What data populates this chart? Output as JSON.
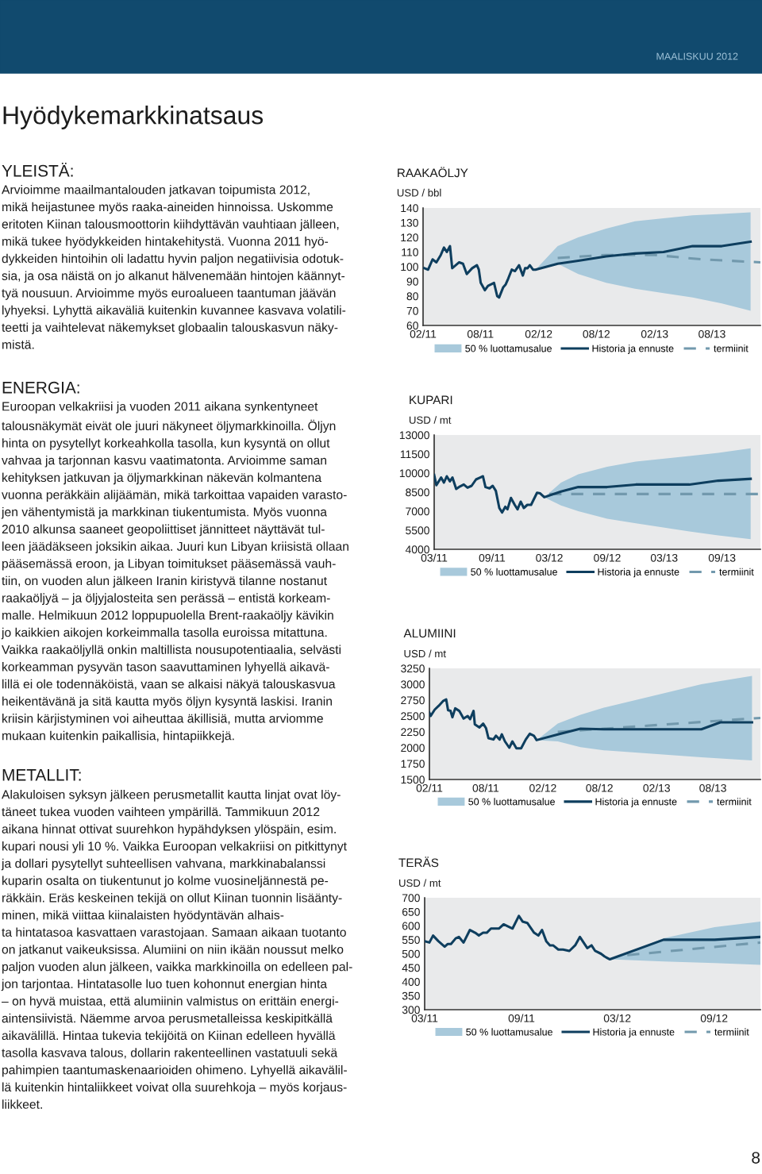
{
  "chart_data": [
    {
      "type": "other",
      "title": "Hyödykemarkkinatsaus",
      "annotations": [
        "MAALISKUU 2012",
        "YLEISTÄ:",
        "Arvioimme maailmantalouden jatkavan toipumista 2012,\nmikä heijastunee myös raaka-aineiden hinnoissa. Uskomme\neritoten Kiinan talousmoottorin kiihdyttävän vauhtiaan jälleen,\nmikä tukee hyödykkeiden hintakehitystä. Vuonna 2011 hyö-\ndykkeiden hintoihin oli ladattu hyvin paljon negatiivisia odotuk-\nsia, ja osa näistä on jo alkanut hälvenemään hintojen käännyt-\ntyä nousuun. Arvioimme myös euroalueen taantuman jäävän\nlyhyeksi. Lyhyttä aikaväliä kuitenkin kuvannee kasvava volatili-\nteetti ja vaihtelevat näkemykset globaalin talouskasvun näky-\nmistä.",
        "ENERGIA:",
        "Euroopan velkakriisi ja vuoden 2011 aikana synkentyneet\ntalousnäkymät eivät ole juuri näkyneet öljymarkkinoilla. Öljyn\nhinta on pysytellyt korkeahkolla tasolla, kun kysyntä on ollut\nvahvaa ja tarjonnan kasvu vaatimatonta. Arvioimme saman\nkehityksen jatkuvan ja öljymarkkinan näkevän kolmantena\nvuonna peräkkäin alijäämän, mikä tarkoittaa vapaiden varasto-\njen vähentymistä ja markkinan tiukentumista. Myös vuonna\n2010 alkunsa saaneet geopoliittiset jännitteet näyttävät tul-\nleen jäädäkseen joksikin aikaa. Juuri kun Libyan kriisistä ollaan\npääsemässä eroon, ja Libyan toimitukset pääsemässä vauh-\ntiin, on vuoden alun jälkeen Iranin kiristyvä tilanne nostanut\nraakaöljyä – ja öljyjalosteita sen perässä – entistä korkeam-\nmalle. Helmikuun 2012 loppupuolella Brent-raakaöljy kävikin\njo kaikkien aikojen korkeimmalla tasolla euroissa mitattuna.\nVaikka raakaöljyllä onkin maltillista nousupotentiaalia, selvästi\nkorkeamman pysyvän tason saavuttaminen lyhyellä aikavä-\nlillä ei ole todennäköistä, vaan se alkaisi näkyä talouskasvua\nheikentävänä ja sitä kautta myös öljyn kysyntä laskisi. Iranin\nkriisin kärjistyminen voi aiheuttaa äkillisiä, mutta arviomme\nmukaan kuitenkin paikallisia, hintapiikkejä.",
        "METALLIT:",
        "Alakuloisen syksyn jälkeen perusmetallit kautta linjat ovat löy-\ntäneet tukea vuoden vaihteen ympärillä. Tammikuun 2012\naikana hinnat ottivat suurehkon hypähdyksen ylöspäin, esim.\nkupari nousi yli 10 %. Vaikka Euroopan velkakriisi on pitkittynyt\nja dollari pysytellyt suhteellisen vahvana, markkinabalanssi\nkuparin osalta on tiukentunut jo kolme vuosineljännestä pe-\nräkkäin. Eräs keskeinen tekijä on ollut Kiinan tuonnin lisäänty-\nminen, mikä viittaa kiinalaisten hyödyntävän alhais-\nta hintatasoa kasvattaen varastojaan. Samaan aikaan tuotanto\non jatkanut vaikeuksissa. Alumiini on niin ikään noussut melko\npaljon vuoden alun jälkeen, vaikka markkinoilla on edelleen pal-\njon tarjontaa. Hintatasolle luo tuen kohonnut energian hinta\n– on hyvä muistaa, että alumiinin valmistus on erittäin energi-\naintensiivistä. Näemme arvoa perusmetalleissa keskipitkällä\naikavälillä. Hintaa tukevia tekijöitä on Kiinan edelleen hyvällä\ntasolla kasvava talous, dollarin rakenteellinen vastatuuli sekä\npahimpien taantumaskenaarioiden ohimeno. Lyhyellä aikavälil-\nlä kuitenkin hintaliikkeet voivat olla suurehkoja – myös korjaus-\nliikkeet.",
        "8"
      ]
    },
    {
      "type": "line",
      "title": "RAAKAÖLJY",
      "ylabel": "USD / bbl",
      "legend": "bottom",
      "grid": false,
      "xlim": [
        "2011-02-01",
        "2014-01-01"
      ],
      "xticks": [
        {
          "value": "2011-02-01",
          "label": "02/11"
        },
        {
          "value": "2011-08-01",
          "label": "08/11"
        },
        {
          "value": "2012-02-01",
          "label": "02/12"
        },
        {
          "value": "2012-08-01",
          "label": "08/12"
        },
        {
          "value": "2013-02-01",
          "label": "02/13"
        },
        {
          "value": "2013-08-01",
          "label": "08/13"
        }
      ],
      "ylim": [
        60,
        140
      ],
      "yticks": [
        60,
        70,
        80,
        90,
        100,
        110,
        120,
        130,
        140
      ],
      "series": [
        {
          "name": "50 % luottamusalue",
          "type": "area",
          "color": "#a8c9db"
        },
        {
          "name": "Historia ja ennuste",
          "color": "#0e3e5e",
          "line_style": "solid",
          "x": [
            "2011-02-05",
            "2011-02-17",
            "2011-03-03",
            "2011-03-15",
            "2011-03-29",
            "2011-04-08",
            "2011-04-17",
            "2011-04-27",
            "2011-05-04",
            "2011-05-26",
            "2011-06-07",
            "2011-06-19",
            "2011-07-06",
            "2011-07-21",
            "2011-07-27",
            "2011-08-02",
            "2011-08-15",
            "2011-08-25",
            "2011-09-13",
            "2011-09-23",
            "2011-09-29",
            "2011-10-12",
            "2011-10-20",
            "2011-10-28",
            "2011-11-08",
            "2011-11-18",
            "2011-12-01",
            "2011-12-13",
            "2011-12-20",
            "2011-12-28",
            "2012-01-04",
            "2012-01-14",
            "2012-01-22",
            "2012-04-01",
            "2012-06-05",
            "2012-09-01",
            "2012-12-01",
            "2013-03-01",
            "2013-06-01",
            "2013-09-01",
            "2013-12-01"
          ],
          "values": [
            99,
            98,
            105,
            103,
            108,
            113,
            110,
            114,
            99,
            103,
            102,
            95,
            99,
            101,
            98,
            89,
            84,
            87,
            89,
            80,
            79,
            86,
            88,
            92,
            98,
            97,
            101,
            94,
            99,
            99,
            101,
            98,
            98,
            102,
            104,
            107,
            109,
            110,
            114,
            114,
            117
          ],
          "lower": [
            null,
            null,
            null,
            null,
            null,
            null,
            null,
            null,
            null,
            null,
            null,
            null,
            null,
            null,
            null,
            null,
            null,
            null,
            null,
            null,
            null,
            null,
            null,
            null,
            null,
            null,
            null,
            null,
            null,
            null,
            null,
            null,
            98,
            102,
            95,
            89,
            85,
            82,
            79,
            75,
            70
          ],
          "upper": [
            null,
            null,
            null,
            null,
            null,
            null,
            null,
            null,
            null,
            null,
            null,
            null,
            null,
            null,
            null,
            null,
            null,
            null,
            null,
            null,
            null,
            null,
            null,
            null,
            null,
            null,
            null,
            null,
            null,
            null,
            null,
            null,
            98,
            114,
            120,
            126,
            131,
            133,
            135,
            136,
            137
          ]
        },
        {
          "name": "termiinit",
          "color": "#7299ad",
          "line_style": "dashed",
          "x": [
            "2012-04-01",
            "2012-09-01",
            "2013-02-01",
            "2013-07-01",
            "2014-01-01"
          ],
          "values": [
            106,
            108,
            108,
            105,
            103
          ]
        }
      ]
    },
    {
      "type": "line",
      "title": "KUPARI",
      "ylabel": "USD / mt",
      "legend": "bottom",
      "grid": false,
      "xlim": [
        "2011-03-01",
        "2014-01-01"
      ],
      "xticks": [
        {
          "value": "2011-03-01",
          "label": "03/11"
        },
        {
          "value": "2011-09-01",
          "label": "09/11"
        },
        {
          "value": "2012-03-01",
          "label": "03/12"
        },
        {
          "value": "2012-09-01",
          "label": "09/12"
        },
        {
          "value": "2013-03-01",
          "label": "03/13"
        },
        {
          "value": "2013-09-01",
          "label": "09/13"
        }
      ],
      "ylim": [
        4000,
        13000
      ],
      "yticks": [
        4000,
        5500,
        7000,
        8500,
        10000,
        11500,
        13000
      ],
      "series": [
        {
          "name": "50 % luottamusalue",
          "type": "area",
          "color": "#a8c9db"
        },
        {
          "name": "Historia ja ennuste",
          "color": "#0e3e5e",
          "line_style": "solid",
          "x": [
            "2011-03-01",
            "2011-03-08",
            "2011-03-23",
            "2011-04-01",
            "2011-04-10",
            "2011-04-20",
            "2011-04-28",
            "2011-05-10",
            "2011-05-22",
            "2011-06-03",
            "2011-06-15",
            "2011-06-28",
            "2011-07-12",
            "2011-07-25",
            "2011-08-03",
            "2011-08-11",
            "2011-08-24",
            "2011-09-03",
            "2011-09-13",
            "2011-09-24",
            "2011-10-03",
            "2011-10-13",
            "2011-10-20",
            "2011-10-31",
            "2011-11-12",
            "2011-11-21",
            "2011-12-01",
            "2011-12-11",
            "2011-12-22",
            "2012-01-03",
            "2012-01-22",
            "2012-02-01",
            "2012-02-14",
            "2012-04-07",
            "2012-06-01",
            "2012-09-01",
            "2012-12-01",
            "2013-05-20",
            "2013-08-20",
            "2013-12-01"
          ],
          "values": [
            9850,
            9050,
            9650,
            9250,
            9750,
            9350,
            9650,
            8750,
            8950,
            9100,
            8850,
            9000,
            9500,
            9650,
            9750,
            8900,
            8800,
            9000,
            8600,
            7250,
            6900,
            7350,
            7150,
            8050,
            7500,
            7150,
            7750,
            7250,
            7500,
            7500,
            8450,
            8400,
            8100,
            8550,
            8900,
            8900,
            9100,
            9100,
            9400,
            9550
          ],
          "lower": [
            null,
            null,
            null,
            null,
            null,
            null,
            null,
            null,
            null,
            null,
            null,
            null,
            null,
            null,
            null,
            null,
            null,
            null,
            null,
            null,
            null,
            null,
            null,
            null,
            null,
            null,
            null,
            null,
            null,
            null,
            null,
            null,
            8100,
            7450,
            7000,
            6400,
            6050,
            5400,
            5100,
            4800
          ],
          "upper": [
            null,
            null,
            null,
            null,
            null,
            null,
            null,
            null,
            null,
            null,
            null,
            null,
            null,
            null,
            null,
            null,
            null,
            null,
            null,
            null,
            null,
            null,
            null,
            null,
            null,
            null,
            null,
            null,
            null,
            null,
            null,
            null,
            8100,
            9250,
            9900,
            10500,
            10900,
            11350,
            11600,
            11950
          ]
        },
        {
          "name": "termiinit",
          "color": "#7299ad",
          "line_style": "dashed",
          "x": [
            "2012-03-01",
            "2014-01-01"
          ],
          "values": [
            8350,
            8350
          ]
        }
      ]
    },
    {
      "type": "line",
      "title": "ALUMIINI",
      "ylabel": "USD / mt",
      "legend": "bottom",
      "grid": false,
      "xlim": [
        "2011-02-01",
        "2014-01-01"
      ],
      "xticks": [
        {
          "value": "2011-02-01",
          "label": "02/11"
        },
        {
          "value": "2011-08-01",
          "label": "08/11"
        },
        {
          "value": "2012-02-01",
          "label": "02/12"
        },
        {
          "value": "2012-08-01",
          "label": "08/12"
        },
        {
          "value": "2013-02-01",
          "label": "02/13"
        },
        {
          "value": "2013-08-01",
          "label": "08/13"
        }
      ],
      "ylim": [
        1500,
        3250
      ],
      "yticks": [
        1500,
        1750,
        2000,
        2250,
        2500,
        2750,
        3000,
        3250
      ],
      "series": [
        {
          "name": "50 % luottamusalue",
          "type": "area",
          "color": "#a8c9db"
        },
        {
          "name": "Historia ja ennuste",
          "color": "#0e3e5e",
          "line_style": "solid",
          "x": [
            "2011-02-01",
            "2011-02-05",
            "2011-02-18",
            "2011-03-03",
            "2011-03-18",
            "2011-03-27",
            "2011-04-02",
            "2011-04-10",
            "2011-04-16",
            "2011-04-25",
            "2011-05-08",
            "2011-05-22",
            "2011-06-04",
            "2011-06-12",
            "2011-06-23",
            "2011-06-27",
            "2011-07-12",
            "2011-07-24",
            "2011-08-02",
            "2011-08-10",
            "2011-08-26",
            "2011-09-03",
            "2011-09-15",
            "2011-09-22",
            "2011-10-02",
            "2011-10-16",
            "2011-10-26",
            "2011-11-08",
            "2011-11-23",
            "2011-12-08",
            "2011-12-21",
            "2012-01-03",
            "2012-01-12",
            "2012-03-20",
            "2012-06-01",
            "2012-08-15",
            "2013-06-25",
            "2013-08-25",
            "2013-12-05"
          ],
          "values": [
            2550,
            2500,
            2600,
            2660,
            2740,
            2760,
            2590,
            2580,
            2480,
            2620,
            2580,
            2460,
            2500,
            2450,
            2580,
            2370,
            2320,
            2380,
            2310,
            2150,
            2130,
            2190,
            2130,
            2210,
            2100,
            2000,
            2100,
            1990,
            1990,
            2130,
            2220,
            2190,
            2120,
            2210,
            2300,
            2290,
            2290,
            2400,
            2400
          ],
          "lower": [
            null,
            null,
            null,
            null,
            null,
            null,
            null,
            null,
            null,
            null,
            null,
            null,
            null,
            null,
            null,
            null,
            null,
            null,
            null,
            null,
            null,
            null,
            null,
            null,
            null,
            null,
            null,
            null,
            null,
            null,
            null,
            null,
            2120,
            2100,
            2010,
            1960,
            1850,
            1830,
            1800
          ],
          "upper": [
            null,
            null,
            null,
            null,
            null,
            null,
            null,
            null,
            null,
            null,
            null,
            null,
            null,
            null,
            null,
            null,
            null,
            null,
            null,
            null,
            null,
            null,
            null,
            null,
            null,
            null,
            null,
            null,
            null,
            null,
            null,
            null,
            2120,
            2380,
            2520,
            2630,
            3000,
            3050,
            3130
          ]
        },
        {
          "name": "termiinit",
          "color": "#7299ad",
          "line_style": "dashed",
          "x": [
            "2012-03-20",
            "2014-01-01"
          ],
          "values": [
            2250,
            2470
          ]
        }
      ]
    },
    {
      "type": "line",
      "title": "TERÄS",
      "ylabel": "USD / mt",
      "legend": "bottom",
      "grid": false,
      "xlim": [
        "2011-03-01",
        "2012-11-28"
      ],
      "xticks": [
        {
          "value": "2011-03-01",
          "label": "03/11"
        },
        {
          "value": "2011-09-01",
          "label": "09/11"
        },
        {
          "value": "2012-03-01",
          "label": "03/12"
        },
        {
          "value": "2012-09-01",
          "label": "09/12"
        }
      ],
      "ylim": [
        300,
        700
      ],
      "yticks": [
        300,
        350,
        400,
        450,
        500,
        550,
        600,
        650,
        700
      ],
      "series": [
        {
          "name": "50 % luottamusalue",
          "type": "area",
          "color": "#a8c9db"
        },
        {
          "name": "Historia ja ennuste",
          "color": "#0e3e5e",
          "line_style": "solid",
          "x": [
            "2011-03-01",
            "2011-03-10",
            "2011-03-17",
            "2011-03-27",
            "2011-04-08",
            "2011-04-14",
            "2011-04-20",
            "2011-04-29",
            "2011-05-05",
            "2011-05-14",
            "2011-05-26",
            "2011-06-05",
            "2011-06-12",
            "2011-06-20",
            "2011-06-27",
            "2011-07-05",
            "2011-07-12",
            "2011-07-20",
            "2011-07-29",
            "2011-08-15",
            "2011-08-27",
            "2011-09-03",
            "2011-09-12",
            "2011-09-25",
            "2011-10-03",
            "2011-10-10",
            "2011-10-18",
            "2011-10-25",
            "2011-10-31",
            "2011-11-10",
            "2011-11-19",
            "2011-12-01",
            "2011-12-12",
            "2011-12-21",
            "2011-12-28",
            "2012-01-04",
            "2012-01-12",
            "2012-01-19",
            "2012-01-30",
            "2012-02-06",
            "2012-02-16",
            "2012-05-28",
            "2012-09-02",
            "2012-11-28"
          ],
          "values": [
            545,
            540,
            565,
            545,
            525,
            535,
            535,
            555,
            560,
            540,
            585,
            575,
            565,
            575,
            575,
            590,
            590,
            590,
            605,
            590,
            635,
            615,
            610,
            575,
            565,
            585,
            545,
            530,
            530,
            515,
            515,
            510,
            530,
            560,
            540,
            520,
            530,
            510,
            500,
            490,
            480,
            550,
            550,
            560
          ],
          "lower": [
            null,
            null,
            null,
            null,
            null,
            null,
            null,
            null,
            null,
            null,
            null,
            null,
            null,
            null,
            null,
            null,
            null,
            null,
            null,
            null,
            null,
            null,
            null,
            null,
            null,
            null,
            null,
            null,
            null,
            null,
            null,
            null,
            null,
            null,
            null,
            null,
            null,
            null,
            null,
            null,
            480,
            472,
            467,
            460
          ],
          "upper": [
            null,
            null,
            null,
            null,
            null,
            null,
            null,
            null,
            null,
            null,
            null,
            null,
            null,
            null,
            null,
            null,
            null,
            null,
            null,
            null,
            null,
            null,
            null,
            null,
            null,
            null,
            null,
            null,
            null,
            null,
            null,
            null,
            null,
            null,
            null,
            null,
            null,
            null,
            null,
            null,
            480,
            555,
            595,
            615
          ]
        },
        {
          "name": "termiinit",
          "color": "#7299ad",
          "line_style": "dashed",
          "x": [
            "2012-03-20",
            "2012-11-28"
          ],
          "values": [
            495,
            540
          ]
        }
      ]
    }
  ]
}
